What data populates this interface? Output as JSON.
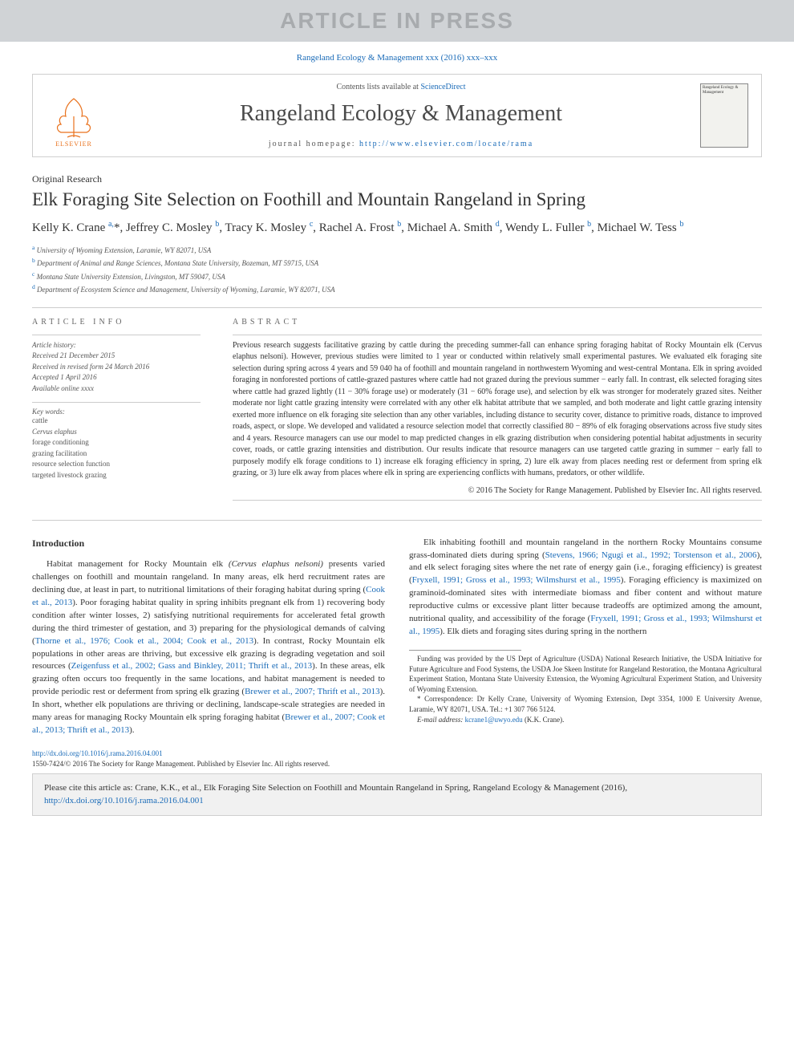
{
  "banner": {
    "text": "ARTICLE IN PRESS"
  },
  "citation_top": {
    "prefix": "Rangeland Ecology & Management xxx (2016) xxx–xxx",
    "link_text": "Rangeland Ecology & Management xxx (2016) xxx–xxx"
  },
  "header": {
    "publisher": "ELSEVIER",
    "contents_prefix": "Contents lists available at ",
    "contents_link": "ScienceDirect",
    "journal": "Rangeland Ecology & Management",
    "homepage_prefix": "journal homepage: ",
    "homepage_url": "http://www.elsevier.com/locate/rama",
    "cover_label": "Rangeland Ecology & Management"
  },
  "article": {
    "type": "Original Research",
    "title": "Elk Foraging Site Selection on Foothill and Mountain Rangeland in Spring",
    "authors_html": "Kelly K. Crane <sup>a,</sup><span class='star'>*</span>, Jeffrey C. Mosley <sup>b</sup>, Tracy K. Mosley <sup>c</sup>, Rachel A. Frost <sup>b</sup>, Michael A. Smith <sup>d</sup>, Wendy L. Fuller <sup>b</sup>, Michael W. Tess <sup>b</sup>",
    "affiliations": [
      {
        "sup": "a",
        "text": "University of Wyoming Extension, Laramie, WY 82071, USA"
      },
      {
        "sup": "b",
        "text": "Department of Animal and Range Sciences, Montana State University, Bozeman, MT 59715, USA"
      },
      {
        "sup": "c",
        "text": "Montana State University Extension, Livingston, MT 59047, USA"
      },
      {
        "sup": "d",
        "text": "Department of Ecosystem Science and Management, University of Wyoming, Laramie, WY 82071, USA"
      }
    ]
  },
  "info": {
    "heading": "ARTICLE INFO",
    "history_label": "Article history:",
    "history": [
      "Received 21 December 2015",
      "Received in revised form 24 March 2016",
      "Accepted 1 April 2016",
      "Available online xxxx"
    ],
    "keywords_label": "Key words:",
    "keywords": [
      "cattle",
      "Cervus elaphus",
      "forage conditioning",
      "grazing facilitation",
      "resource selection function",
      "targeted livestock grazing"
    ]
  },
  "abstract": {
    "heading": "ABSTRACT",
    "text": "Previous research suggests facilitative grazing by cattle during the preceding summer-fall can enhance spring foraging habitat of Rocky Mountain elk (Cervus elaphus nelsoni). However, previous studies were limited to 1 year or conducted within relatively small experimental pastures. We evaluated elk foraging site selection during spring across 4 years and 59 040 ha of foothill and mountain rangeland in northwestern Wyoming and west-central Montana. Elk in spring avoided foraging in nonforested portions of cattle-grazed pastures where cattle had not grazed during the previous summer − early fall. In contrast, elk selected foraging sites where cattle had grazed lightly (11 − 30% forage use) or moderately (31 − 60% forage use), and selection by elk was stronger for moderately grazed sites. Neither moderate nor light cattle grazing intensity were correlated with any other elk habitat attribute that we sampled, and both moderate and light cattle grazing intensity exerted more influence on elk foraging site selection than any other variables, including distance to security cover, distance to primitive roads, distance to improved roads, aspect, or slope. We developed and validated a resource selection model that correctly classified 80 − 89% of elk foraging observations across five study sites and 4 years. Resource managers can use our model to map predicted changes in elk grazing distribution when considering potential habitat adjustments in security cover, roads, or cattle grazing intensities and distribution. Our results indicate that resource managers can use targeted cattle grazing in summer − early fall to purposely modify elk forage conditions to 1) increase elk foraging efficiency in spring, 2) lure elk away from places needing rest or deferment from spring elk grazing, or 3) lure elk away from places where elk in spring are experiencing conflicts with humans, predators, or other wildlife.",
    "copyright": "© 2016 The Society for Range Management. Published by Elsevier Inc. All rights reserved."
  },
  "body": {
    "intro_heading": "Introduction",
    "para1_a": "Habitat management for Rocky Mountain elk ",
    "para1_em": "(Cervus elaphus nelsoni)",
    "para1_b": " presents varied challenges on foothill and mountain rangeland. In many areas, elk herd recruitment rates are declining due, at least in part, to nutritional limitations of their foraging habitat during spring (",
    "para1_link1": "Cook et al., 2013",
    "para1_c": "). Poor foraging habitat quality in spring inhibits pregnant elk from 1) recovering body condition after winter losses, 2) satisfying nutritional requirements for accelerated fetal growth during the third trimester of gestation, and 3) preparing for the physiological demands of calving (",
    "para1_link2": "Thorne et al., 1976; Cook et al., 2004; Cook et al., 2013",
    "para1_d": "). In contrast, Rocky Mountain elk populations in other areas are thriving, but excessive elk grazing is degrading vegetation and soil resources (",
    "para1_link3": "Zeigenfuss et al., 2002; Gass and Binkley, 2011; Thrift et al., 2013",
    "para1_e": "). In these areas, elk grazing often occurs too frequently in the same locations, and habitat management is needed to provide periodic rest or deferment from spring elk grazing (",
    "para1_link4": "Brewer et al., 2007; Thrift et al., 2013",
    "para1_f": "). In short, whether elk populations are thriving or declining, landscape-scale strategies are needed in many areas for managing Rocky Mountain elk spring foraging habitat (",
    "para1_link5": "Brewer et al., 2007; Cook et al., 2013; Thrift et al., 2013",
    "para1_g": ").",
    "para2_a": "Elk inhabiting foothill and mountain rangeland in the northern Rocky Mountains consume grass-dominated diets during spring (",
    "para2_link1": "Stevens, 1966; Ngugi et al., 1992; Torstenson et al., 2006",
    "para2_b": "), and elk select foraging sites where the net rate of energy gain (i.e., foraging efficiency) is greatest (",
    "para2_link2": "Fryxell, 1991; Gross et al., 1993; Wilmshurst et al., 1995",
    "para2_c": "). Foraging efficiency is maximized on graminoid-dominated sites with intermediate biomass and fiber content and without mature reproductive culms or excessive plant litter because tradeoffs are optimized among the amount, nutritional quality, and accessibility of the forage (",
    "para2_link3": "Fryxell, 1991; Gross et al., 1993; Wilmshurst et al., 1995",
    "para2_d": "). Elk diets and foraging sites during spring in the northern"
  },
  "footnotes": {
    "funding": "Funding was provided by the US Dept of Agriculture (USDA) National Research Initiative, the USDA Initiative for Future Agriculture and Food Systems, the USDA Joe Skeen Institute for Rangeland Restoration, the Montana Agricultural Experiment Station, Montana State University Extension, the Wyoming Agricultural Experiment Station, and University of Wyoming Extension.",
    "corr_label": "* ",
    "corr": "Correspondence: Dr Kelly Crane, University of Wyoming Extension, Dept 3354, 1000 E University Avenue, Laramie, WY 82071, USA. Tel.: +1 307 766 5124.",
    "email_label": "E-mail address: ",
    "email": "kcrane1@uwyo.edu",
    "email_suffix": " (K.K. Crane)."
  },
  "doi": {
    "url": "http://dx.doi.org/10.1016/j.rama.2016.04.001",
    "issn_line": "1550-7424/© 2016 The Society for Range Management. Published by Elsevier Inc. All rights reserved."
  },
  "citebox": {
    "prefix": "Please cite this article as: Crane, K.K., et al., Elk Foraging Site Selection on Foothill and Mountain Rangeland in Spring, Rangeland Ecology & Management (2016), ",
    "url": "http://dx.doi.org/10.1016/j.rama.2016.04.001"
  },
  "colors": {
    "link": "#1a6bb8",
    "banner_bg": "#d0d3d6",
    "banner_fg": "#a8abae",
    "elsevier_orange": "#e9711c",
    "border": "#cfcfcf",
    "text": "#333333",
    "muted": "#555555"
  }
}
